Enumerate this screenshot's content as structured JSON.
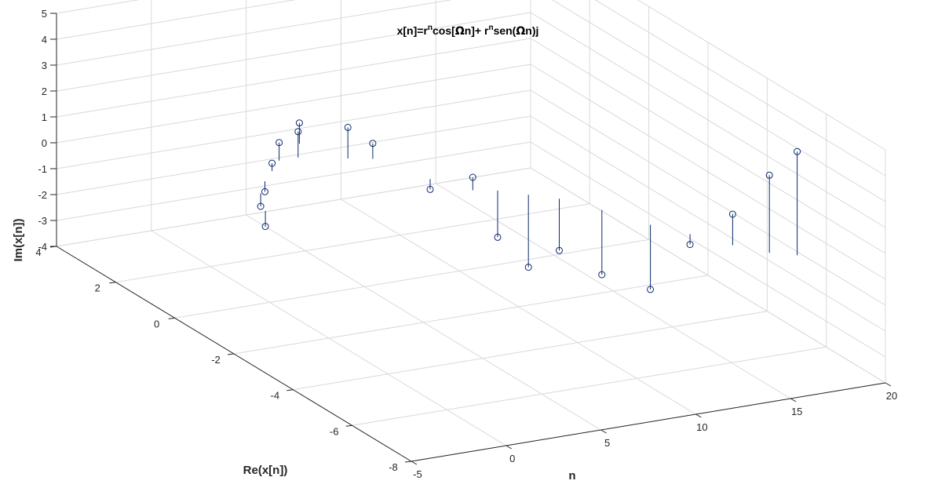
{
  "chart_data": {
    "type": "stem3",
    "title": "x[n]=r^n cos[Ωn]+ r^n sen(Ωn)j",
    "title_parts": {
      "a": "x[n]=r",
      "sup1": "n",
      "b": "cos[",
      "omega1": "Ω",
      "c": "n]+ r",
      "sup2": "n",
      "d": "sen(",
      "omega2": "Ω",
      "e": "n)j"
    },
    "xlabel": "n",
    "ylabel": "Re(x[n])",
    "zlabel": "Im(x[n])",
    "xlim": [
      -5,
      20
    ],
    "ylim": [
      -8,
      4
    ],
    "zlim": [
      -4,
      5
    ],
    "xticks": [
      "-5",
      "0",
      "5",
      "10",
      "15",
      "20"
    ],
    "yticks": [
      "-8",
      "-6",
      "-4",
      "-2",
      "0",
      "2",
      "4"
    ],
    "zticks": [
      "-4",
      "-3",
      "-2",
      "-1",
      "0",
      "1",
      "2",
      "3",
      "4",
      "5"
    ],
    "grid": true,
    "colors": {
      "stem": "#0b2a6f",
      "grid": "#d9d9d9",
      "axis": "#262626"
    },
    "n": [
      -1,
      0,
      1,
      2,
      3,
      4,
      5,
      6,
      7,
      8,
      9,
      10,
      11,
      12,
      13,
      14,
      15,
      16,
      17,
      18
    ],
    "re": [
      -0.5,
      0.3,
      0.8,
      1.2,
      1.6,
      1.6,
      2.2,
      1.2,
      1.0,
      -0.3,
      -1.1,
      -1.3,
      -1.7,
      -2.1,
      -2.9,
      -3.9,
      -4.6,
      -5.4,
      -6.0,
      -6.3
    ],
    "im": [
      -0.6,
      -0.5,
      -0.4,
      0.3,
      0.7,
      1.0,
      0.8,
      1.2,
      0.6,
      -0.4,
      0.5,
      -1.8,
      -2.8,
      -2.0,
      -2.5,
      -2.5,
      -0.4,
      1.2,
      3.0,
      4.0
    ]
  }
}
